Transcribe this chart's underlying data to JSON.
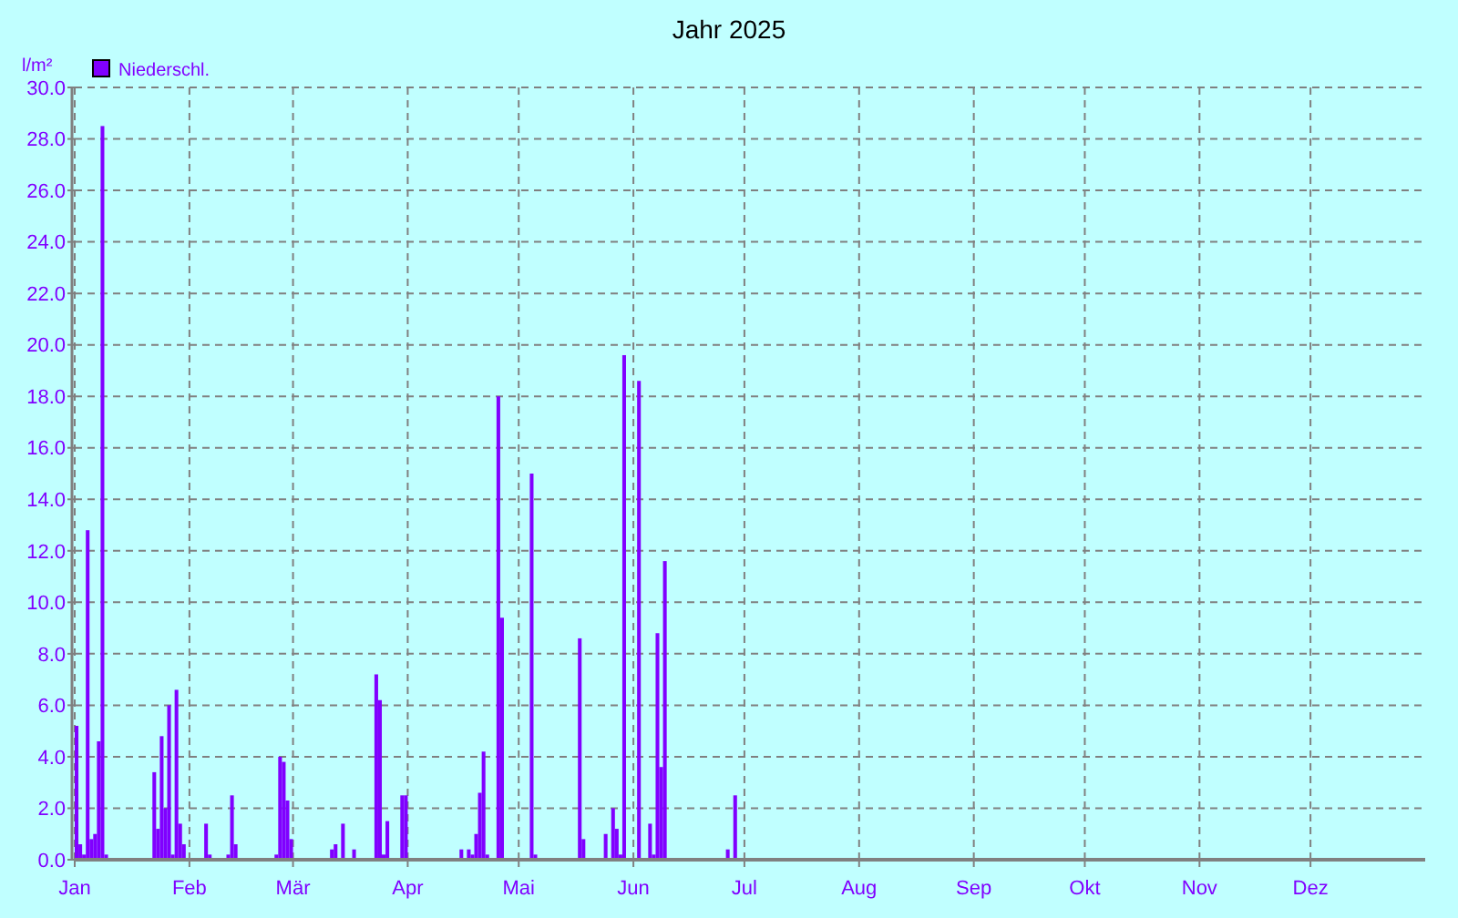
{
  "chart_data": {
    "type": "bar",
    "title": "Jahr 2025",
    "ylabel": "l/m²",
    "legend": "top left",
    "grid": true,
    "xlim": [
      "2025-01-01",
      "2026-01-01"
    ],
    "xticks": [
      {
        "value": "2025-01-01",
        "label": "Jan"
      },
      {
        "value": "2025-02-01",
        "label": "Feb"
      },
      {
        "value": "2025-03-01",
        "label": "Mär"
      },
      {
        "value": "2025-04-01",
        "label": "Apr"
      },
      {
        "value": "2025-05-01",
        "label": "Mai"
      },
      {
        "value": "2025-06-01",
        "label": "Jun"
      },
      {
        "value": "2025-07-01",
        "label": "Jul"
      },
      {
        "value": "2025-08-01",
        "label": "Aug"
      },
      {
        "value": "2025-09-01",
        "label": "Sep"
      },
      {
        "value": "2025-10-01",
        "label": "Okt"
      },
      {
        "value": "2025-11-01",
        "label": "Nov"
      },
      {
        "value": "2025-12-01",
        "label": "Dez"
      }
    ],
    "ylim": [
      0,
      30
    ],
    "yticks": [
      {
        "value": 0,
        "label": "0.0"
      },
      {
        "value": 2,
        "label": "2.0"
      },
      {
        "value": 4,
        "label": "4.0"
      },
      {
        "value": 6,
        "label": "6.0"
      },
      {
        "value": 8,
        "label": "8.0"
      },
      {
        "value": 10,
        "label": "10.0"
      },
      {
        "value": 12,
        "label": "12.0"
      },
      {
        "value": 14,
        "label": "14.0"
      },
      {
        "value": 16,
        "label": "16.0"
      },
      {
        "value": 18,
        "label": "18.0"
      },
      {
        "value": 20,
        "label": "20.0"
      },
      {
        "value": 22,
        "label": "22.0"
      },
      {
        "value": 24,
        "label": "24.0"
      },
      {
        "value": 26,
        "label": "26.0"
      },
      {
        "value": 28,
        "label": "28.0"
      },
      {
        "value": 30,
        "label": "30.0"
      }
    ],
    "x": [
      "2025-01-01",
      "2025-01-02",
      "2025-01-03",
      "2025-01-04",
      "2025-01-05",
      "2025-01-06",
      "2025-01-07",
      "2025-01-08",
      "2025-01-09",
      "2025-01-22",
      "2025-01-23",
      "2025-01-24",
      "2025-01-25",
      "2025-01-26",
      "2025-01-27",
      "2025-01-28",
      "2025-01-29",
      "2025-01-30",
      "2025-02-05",
      "2025-02-06",
      "2025-02-11",
      "2025-02-12",
      "2025-02-13",
      "2025-02-24",
      "2025-02-25",
      "2025-02-26",
      "2025-02-27",
      "2025-02-28",
      "2025-03-11",
      "2025-03-12",
      "2025-03-14",
      "2025-03-17",
      "2025-03-23",
      "2025-03-24",
      "2025-03-25",
      "2025-03-26",
      "2025-03-30",
      "2025-03-31",
      "2025-04-15",
      "2025-04-17",
      "2025-04-18",
      "2025-04-19",
      "2025-04-20",
      "2025-04-21",
      "2025-04-22",
      "2025-04-25",
      "2025-04-26",
      "2025-05-04",
      "2025-05-05",
      "2025-05-17",
      "2025-05-18",
      "2025-05-24",
      "2025-05-26",
      "2025-05-27",
      "2025-05-28",
      "2025-05-29",
      "2025-06-02",
      "2025-06-05",
      "2025-06-06",
      "2025-06-07",
      "2025-06-08",
      "2025-06-09",
      "2025-06-26",
      "2025-06-28"
    ],
    "series": [
      {
        "name": "Niederschl.",
        "color": "#8000ff",
        "values": [
          5.2,
          0.6,
          0.2,
          12.8,
          0.8,
          1.0,
          4.6,
          28.5,
          0.2,
          3.4,
          1.2,
          4.8,
          2.0,
          6.0,
          0.2,
          6.6,
          1.4,
          0.6,
          1.4,
          0.2,
          0.2,
          2.5,
          0.6,
          0.2,
          4.0,
          3.8,
          2.3,
          0.8,
          0.4,
          0.6,
          1.4,
          0.4,
          7.2,
          6.2,
          0.2,
          1.5,
          2.5,
          2.5,
          0.4,
          0.4,
          0.2,
          1.0,
          2.6,
          4.2,
          0.2,
          18.0,
          9.4,
          15.0,
          0.2,
          8.6,
          0.8,
          1.0,
          2.0,
          1.2,
          0.2,
          19.6,
          18.6,
          1.4,
          0.2,
          8.8,
          3.6,
          11.6,
          0.4,
          2.5
        ]
      }
    ]
  }
}
